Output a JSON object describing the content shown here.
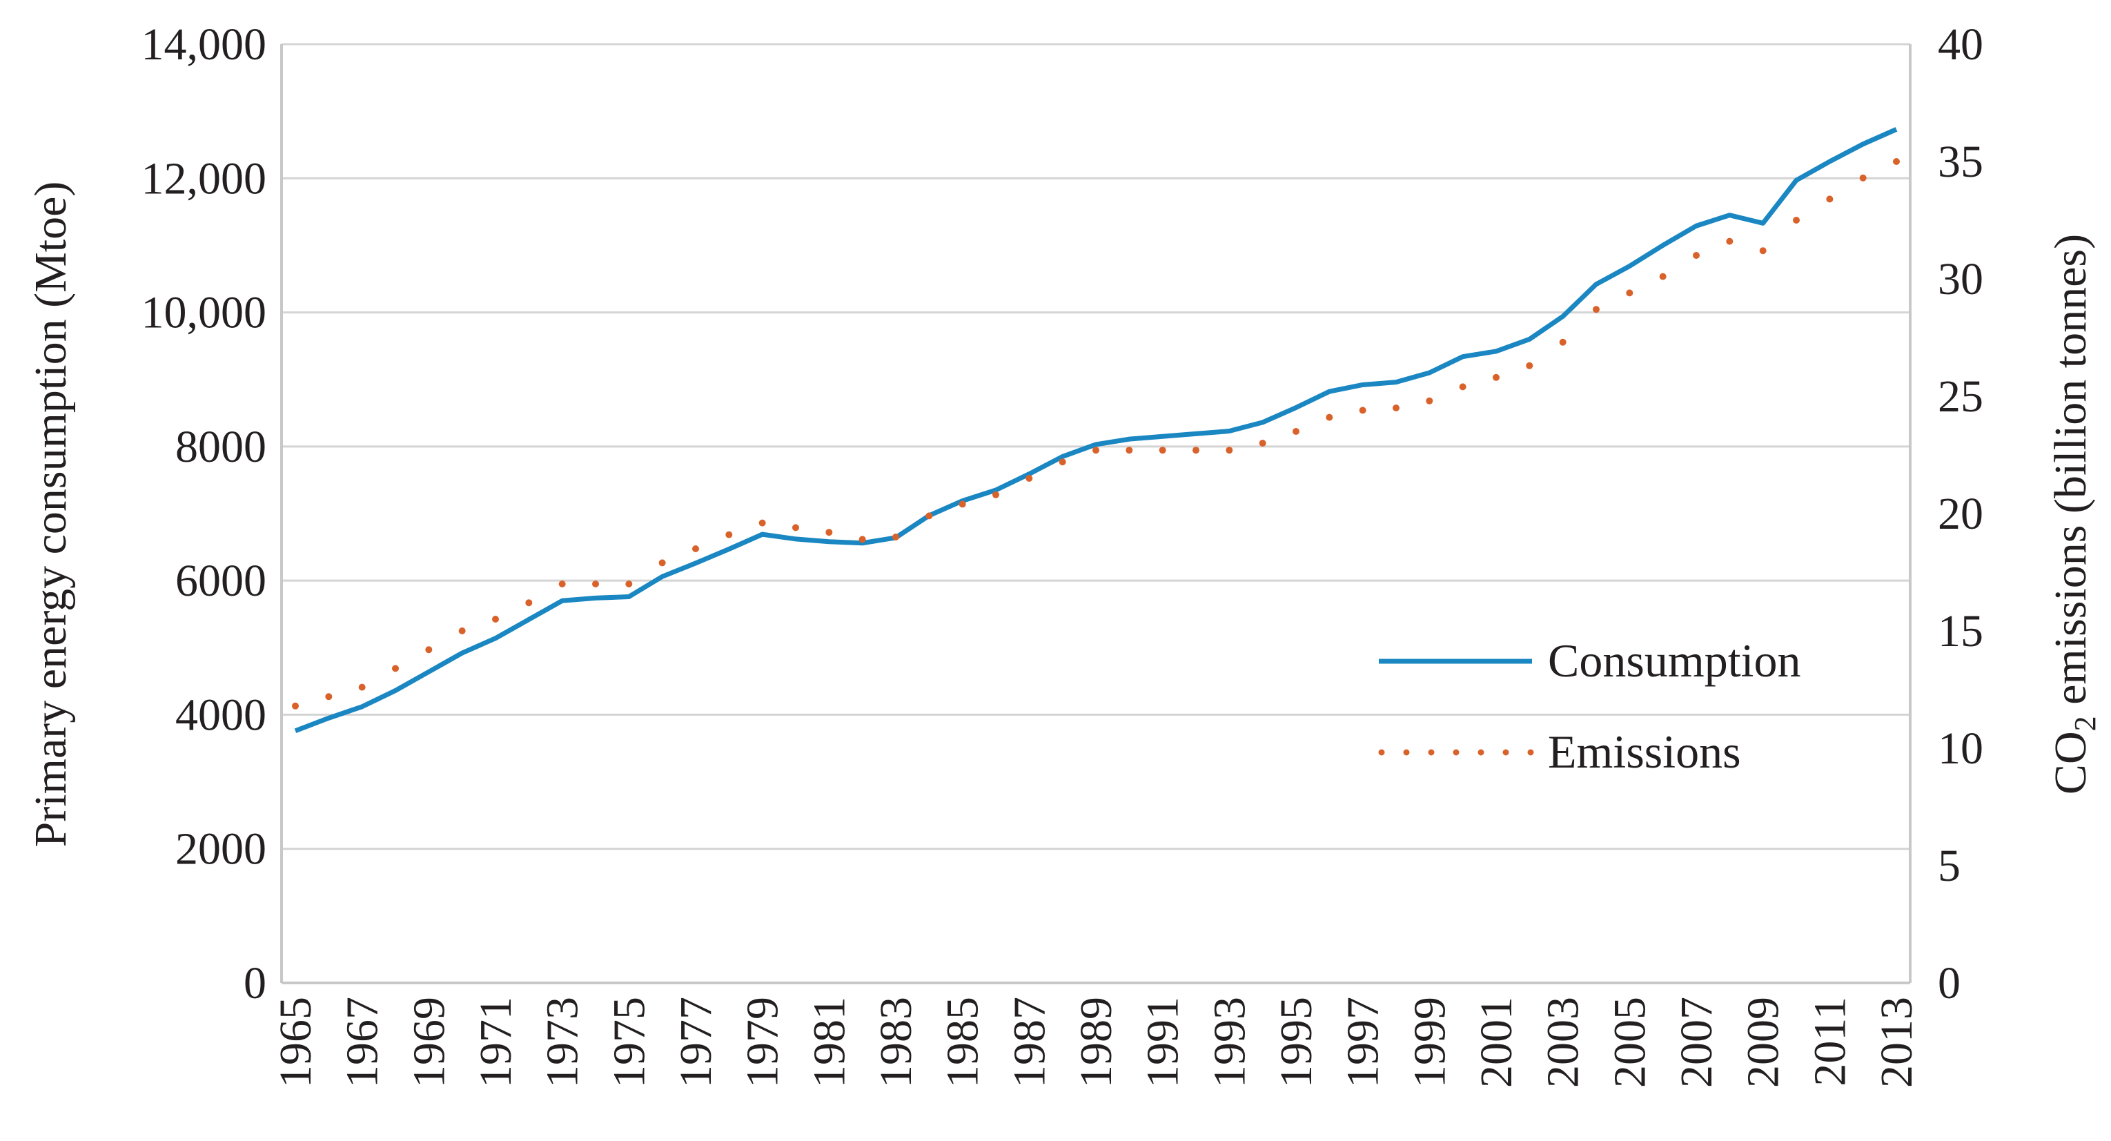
{
  "chart_data": {
    "type": "line",
    "title": "",
    "xlabel": "",
    "ylabel": "Primary energy consumption (Mtoe)",
    "ylabel_right": "CO2 emissions (billion tonnes)",
    "ylabel_right_parts": {
      "pre": "CO",
      "sub": "2",
      "post": " emissions (billion tonnes)"
    },
    "ylim": [
      0,
      14000
    ],
    "ylim_right": [
      0,
      40
    ],
    "yticks": [
      "0",
      "2000",
      "4000",
      "6000",
      "8000",
      "10,000",
      "12,000",
      "14,000"
    ],
    "yticks_right": [
      "0",
      "5",
      "10",
      "15",
      "20",
      "25",
      "30",
      "35",
      "40"
    ],
    "grid": true,
    "legend_position": "right-middle",
    "x": [
      1965,
      1966,
      1967,
      1968,
      1969,
      1970,
      1971,
      1972,
      1973,
      1974,
      1975,
      1976,
      1977,
      1978,
      1979,
      1980,
      1981,
      1982,
      1983,
      1984,
      1985,
      1986,
      1987,
      1988,
      1989,
      1990,
      1991,
      1992,
      1993,
      1994,
      1995,
      1996,
      1997,
      1998,
      1999,
      2000,
      2001,
      2002,
      2003,
      2004,
      2005,
      2006,
      2007,
      2008,
      2009,
      2010,
      2011,
      2012,
      2013
    ],
    "xtick_labels": [
      "1965",
      "1967",
      "1969",
      "1971",
      "1973",
      "1975",
      "1977",
      "1979",
      "1981",
      "1983",
      "1985",
      "1987",
      "1989",
      "1991",
      "1993",
      "1995",
      "1997",
      "1999",
      "2001",
      "2003",
      "2005",
      "2007",
      "2009",
      "2011",
      "2013"
    ],
    "series": [
      {
        "name": "Consumption",
        "axis": "left",
        "style": "solid",
        "color": "#1a87c2",
        "values": [
          3760,
          3950,
          4120,
          4360,
          4640,
          4920,
          5140,
          5420,
          5700,
          5740,
          5760,
          6060,
          6260,
          6470,
          6690,
          6620,
          6580,
          6560,
          6640,
          6970,
          7190,
          7350,
          7590,
          7850,
          8030,
          8110,
          8150,
          8190,
          8230,
          8360,
          8580,
          8820,
          8920,
          8960,
          9100,
          9340,
          9420,
          9600,
          9940,
          10420,
          10690,
          11000,
          11290,
          11450,
          11330,
          11970,
          12250,
          12510,
          12730
        ]
      },
      {
        "name": "Emissions",
        "axis": "right",
        "style": "dotted",
        "color": "#d9622b",
        "values": [
          11.8,
          12.2,
          12.6,
          13.4,
          14.2,
          15.0,
          15.5,
          16.2,
          17.0,
          17.0,
          17.0,
          17.9,
          18.5,
          19.1,
          19.6,
          19.4,
          19.2,
          18.9,
          19.0,
          19.9,
          20.4,
          20.8,
          21.5,
          22.2,
          22.7,
          22.7,
          22.7,
          22.7,
          22.7,
          23.0,
          23.5,
          24.1,
          24.4,
          24.5,
          24.8,
          25.4,
          25.8,
          26.3,
          27.3,
          28.7,
          29.4,
          30.1,
          31.0,
          31.6,
          31.2,
          32.5,
          33.4,
          34.3,
          35.0
        ]
      }
    ]
  }
}
